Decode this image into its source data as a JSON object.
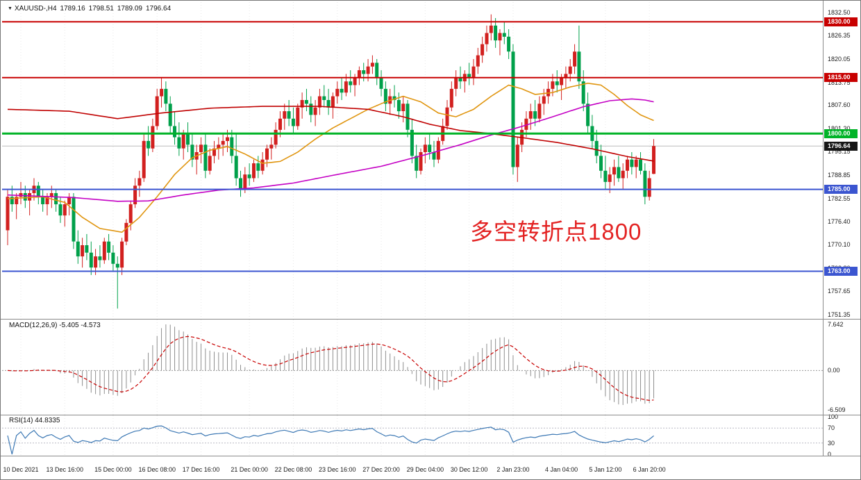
{
  "header": {
    "dropdown_icon": "▼",
    "symbol": "XAUUSD-,H4",
    "open": "1789.16",
    "high": "1798.51",
    "low": "1789.09",
    "close": "1796.64"
  },
  "chart_data": {
    "type": "candlestick",
    "symbol": "XAUUSD",
    "timeframe": "H4",
    "colors": {
      "bull": "#d2201f",
      "bear": "#00a04a",
      "ma_fast": "#e0950f",
      "ma_mid": "#c400c4",
      "ma_slow": "#c00000",
      "current_price_line": "#bcbcbc",
      "current_price_badge": "#151515",
      "macd_hist": "#8e8e8e",
      "macd_signal": "#c80000",
      "rsi": "#3c78b4",
      "grid": "#e8e8e8"
    },
    "price_axis": {
      "max": 1832.5,
      "min": 1751.35,
      "labels": [
        "1832.50",
        "1826.35",
        "1820.05",
        "1813.75",
        "1807.60",
        "1801.30",
        "1795.15",
        "1788.85",
        "1782.55",
        "1776.40",
        "1770.10",
        "1763.80",
        "1757.65",
        "1751.35"
      ]
    },
    "time_axis": {
      "ticks": [
        {
          "i": 3,
          "label": "10 Dec 2021"
        },
        {
          "i": 13,
          "label": "13 Dec 16:00"
        },
        {
          "i": 24,
          "label": "15 Dec 00:00"
        },
        {
          "i": 34,
          "label": "16 Dec 08:00"
        },
        {
          "i": 44,
          "label": "17 Dec 16:00"
        },
        {
          "i": 55,
          "label": "21 Dec 00:00"
        },
        {
          "i": 65,
          "label": "22 Dec 08:00"
        },
        {
          "i": 75,
          "label": "23 Dec 16:00"
        },
        {
          "i": 85,
          "label": "27 Dec 20:00"
        },
        {
          "i": 95,
          "label": "29 Dec 04:00"
        },
        {
          "i": 105,
          "label": "30 Dec 12:00"
        },
        {
          "i": 115,
          "label": "2 Jan 23:00"
        },
        {
          "i": 126,
          "label": "4 Jan 04:00"
        },
        {
          "i": 136,
          "label": "5 Jan 12:00"
        },
        {
          "i": 146,
          "label": "6 Jan 20:00"
        }
      ]
    },
    "levels": [
      {
        "price": 1830.0,
        "label": "1830.00",
        "color": "#c80000",
        "thickness": 2
      },
      {
        "price": 1815.0,
        "label": "1815.00",
        "color": "#c80000",
        "thickness": 2
      },
      {
        "price": 1800.0,
        "label": "1800.00",
        "color": "#00b327",
        "thickness": 3
      },
      {
        "price": 1785.0,
        "label": "1785.00",
        "color": "#3b55d0",
        "thickness": 2
      },
      {
        "price": 1763.0,
        "label": "1763.00",
        "color": "#3b55d0",
        "thickness": 2
      }
    ],
    "current_price": {
      "value": 1796.64,
      "label": "1796.64"
    },
    "candles": [
      [
        1774,
        1785,
        1770,
        1783
      ],
      [
        1783,
        1786,
        1779,
        1781
      ],
      [
        1781,
        1784,
        1777,
        1783
      ],
      [
        1783,
        1787,
        1781,
        1784
      ],
      [
        1784,
        1786,
        1780,
        1782
      ],
      [
        1782,
        1785,
        1778,
        1784
      ],
      [
        1784,
        1788,
        1782,
        1786
      ],
      [
        1786,
        1787,
        1781,
        1783
      ],
      [
        1783,
        1785,
        1779,
        1781
      ],
      [
        1781,
        1784,
        1778,
        1783
      ],
      [
        1783,
        1786,
        1780,
        1784
      ],
      [
        1784,
        1785,
        1779,
        1781
      ],
      [
        1781,
        1783,
        1776,
        1778
      ],
      [
        1778,
        1782,
        1775,
        1781
      ],
      [
        1781,
        1784,
        1778,
        1783
      ],
      [
        1783,
        1784,
        1769,
        1771
      ],
      [
        1771,
        1774,
        1765,
        1767
      ],
      [
        1767,
        1772,
        1764,
        1770
      ],
      [
        1770,
        1773,
        1766,
        1768
      ],
      [
        1768,
        1771,
        1762,
        1764
      ],
      [
        1764,
        1769,
        1762,
        1767
      ],
      [
        1767,
        1770,
        1764,
        1766
      ],
      [
        1766,
        1772,
        1765,
        1771
      ],
      [
        1771,
        1773,
        1766,
        1768
      ],
      [
        1768,
        1770,
        1763,
        1765
      ],
      [
        1765,
        1767,
        1753,
        1764
      ],
      [
        1764,
        1772,
        1762,
        1771
      ],
      [
        1771,
        1777,
        1770,
        1776
      ],
      [
        1776,
        1782,
        1774,
        1781
      ],
      [
        1781,
        1788,
        1780,
        1786
      ],
      [
        1786,
        1790,
        1783,
        1788
      ],
      [
        1788,
        1800,
        1787,
        1798
      ],
      [
        1798,
        1802,
        1794,
        1796
      ],
      [
        1796,
        1804,
        1795,
        1802
      ],
      [
        1802,
        1812,
        1801,
        1810
      ],
      [
        1810,
        1815,
        1807,
        1812
      ],
      [
        1812,
        1814,
        1806,
        1808
      ],
      [
        1808,
        1810,
        1800,
        1802
      ],
      [
        1802,
        1806,
        1797,
        1799
      ],
      [
        1799,
        1803,
        1794,
        1796
      ],
      [
        1796,
        1801,
        1793,
        1800
      ],
      [
        1800,
        1803,
        1795,
        1797
      ],
      [
        1797,
        1800,
        1791,
        1793
      ],
      [
        1793,
        1797,
        1789,
        1795
      ],
      [
        1795,
        1799,
        1792,
        1797
      ],
      [
        1797,
        1800,
        1788,
        1790
      ],
      [
        1790,
        1796,
        1789,
        1794
      ],
      [
        1794,
        1798,
        1792,
        1796
      ],
      [
        1796,
        1799,
        1793,
        1797
      ],
      [
        1797,
        1800,
        1794,
        1798
      ],
      [
        1798,
        1801,
        1795,
        1799
      ],
      [
        1799,
        1801,
        1792,
        1794
      ],
      [
        1794,
        1800,
        1786,
        1788
      ],
      [
        1788,
        1790,
        1783,
        1785
      ],
      [
        1785,
        1791,
        1784,
        1789
      ],
      [
        1789,
        1792,
        1786,
        1788
      ],
      [
        1788,
        1793,
        1787,
        1792
      ],
      [
        1792,
        1794,
        1788,
        1790
      ],
      [
        1790,
        1795,
        1789,
        1793
      ],
      [
        1793,
        1797,
        1791,
        1796
      ],
      [
        1796,
        1799,
        1793,
        1797
      ],
      [
        1797,
        1803,
        1796,
        1801
      ],
      [
        1801,
        1806,
        1799,
        1804
      ],
      [
        1804,
        1808,
        1801,
        1806
      ],
      [
        1806,
        1809,
        1802,
        1804
      ],
      [
        1804,
        1807,
        1800,
        1802
      ],
      [
        1802,
        1808,
        1801,
        1807
      ],
      [
        1807,
        1811,
        1804,
        1809
      ],
      [
        1809,
        1812,
        1806,
        1808
      ],
      [
        1808,
        1810,
        1803,
        1805
      ],
      [
        1805,
        1809,
        1802,
        1807
      ],
      [
        1807,
        1812,
        1805,
        1810
      ],
      [
        1810,
        1813,
        1807,
        1809
      ],
      [
        1809,
        1812,
        1805,
        1807
      ],
      [
        1807,
        1811,
        1804,
        1810
      ],
      [
        1810,
        1814,
        1808,
        1812
      ],
      [
        1812,
        1815,
        1809,
        1811
      ],
      [
        1811,
        1816,
        1810,
        1814
      ],
      [
        1814,
        1817,
        1811,
        1813
      ],
      [
        1813,
        1816,
        1810,
        1815
      ],
      [
        1815,
        1818,
        1813,
        1817
      ],
      [
        1817,
        1819,
        1814,
        1816
      ],
      [
        1816,
        1820,
        1814,
        1818
      ],
      [
        1818,
        1821,
        1816,
        1819
      ],
      [
        1819,
        1820,
        1813,
        1815
      ],
      [
        1815,
        1817,
        1810,
        1812
      ],
      [
        1812,
        1814,
        1806,
        1808
      ],
      [
        1808,
        1812,
        1805,
        1810
      ],
      [
        1810,
        1813,
        1807,
        1809
      ],
      [
        1809,
        1811,
        1804,
        1806
      ],
      [
        1806,
        1810,
        1803,
        1808
      ],
      [
        1808,
        1809,
        1799,
        1801
      ],
      [
        1801,
        1804,
        1792,
        1794
      ],
      [
        1794,
        1797,
        1788,
        1790
      ],
      [
        1790,
        1796,
        1789,
        1795
      ],
      [
        1795,
        1799,
        1792,
        1797
      ],
      [
        1797,
        1800,
        1793,
        1795
      ],
      [
        1795,
        1798,
        1791,
        1793
      ],
      [
        1793,
        1799,
        1792,
        1798
      ],
      [
        1798,
        1804,
        1797,
        1802
      ],
      [
        1802,
        1809,
        1801,
        1807
      ],
      [
        1807,
        1814,
        1806,
        1812
      ],
      [
        1812,
        1817,
        1810,
        1815
      ],
      [
        1815,
        1818,
        1812,
        1814
      ],
      [
        1814,
        1817,
        1811,
        1816
      ],
      [
        1816,
        1819,
        1813,
        1815
      ],
      [
        1815,
        1820,
        1813,
        1818
      ],
      [
        1818,
        1823,
        1816,
        1821
      ],
      [
        1821,
        1826,
        1819,
        1824
      ],
      [
        1824,
        1829,
        1822,
        1827
      ],
      [
        1827,
        1832,
        1825,
        1829
      ],
      [
        1829,
        1831,
        1823,
        1825
      ],
      [
        1825,
        1828,
        1821,
        1827
      ],
      [
        1827,
        1830,
        1824,
        1826
      ],
      [
        1826,
        1828,
        1820,
        1822
      ],
      [
        1822,
        1824,
        1789,
        1791
      ],
      [
        1791,
        1799,
        1787,
        1797
      ],
      [
        1797,
        1803,
        1795,
        1801
      ],
      [
        1801,
        1806,
        1799,
        1804
      ],
      [
        1804,
        1808,
        1801,
        1806
      ],
      [
        1806,
        1809,
        1802,
        1804
      ],
      [
        1804,
        1810,
        1803,
        1808
      ],
      [
        1808,
        1812,
        1805,
        1810
      ],
      [
        1810,
        1814,
        1808,
        1812
      ],
      [
        1812,
        1816,
        1810,
        1814
      ],
      [
        1814,
        1817,
        1811,
        1813
      ],
      [
        1813,
        1816,
        1809,
        1815
      ],
      [
        1815,
        1818,
        1812,
        1816
      ],
      [
        1816,
        1820,
        1814,
        1818
      ],
      [
        1818,
        1824,
        1816,
        1822
      ],
      [
        1822,
        1829,
        1812,
        1814
      ],
      [
        1814,
        1817,
        1806,
        1808
      ],
      [
        1808,
        1811,
        1800,
        1802
      ],
      [
        1802,
        1805,
        1796,
        1798
      ],
      [
        1798,
        1801,
        1792,
        1794
      ],
      [
        1794,
        1797,
        1788,
        1790
      ],
      [
        1790,
        1794,
        1785,
        1787
      ],
      [
        1787,
        1791,
        1784,
        1789
      ],
      [
        1789,
        1793,
        1786,
        1791
      ],
      [
        1791,
        1794,
        1787,
        1788
      ],
      [
        1788,
        1792,
        1785,
        1790
      ],
      [
        1790,
        1794,
        1788,
        1793
      ],
      [
        1793,
        1795,
        1789,
        1791
      ],
      [
        1791,
        1794,
        1788,
        1793
      ],
      [
        1793,
        1795,
        1789,
        1790
      ],
      [
        1790,
        1792,
        1781,
        1783
      ],
      [
        1783,
        1790,
        1782,
        1788
      ],
      [
        1789.16,
        1798.51,
        1789.09,
        1796.64
      ]
    ],
    "moving_averages": [
      {
        "name": "ma-fast-orange-line",
        "color": "#e0950f",
        "points": [
          [
            0,
            1782.5
          ],
          [
            8,
            1783
          ],
          [
            13,
            1781.5
          ],
          [
            17,
            1777.5
          ],
          [
            21,
            1774.5
          ],
          [
            26,
            1773.5
          ],
          [
            30,
            1777.5
          ],
          [
            34,
            1783
          ],
          [
            38,
            1789
          ],
          [
            42,
            1793.5
          ],
          [
            46,
            1795.5
          ],
          [
            50,
            1796.5
          ],
          [
            54,
            1794.5
          ],
          [
            58,
            1792
          ],
          [
            62,
            1792.5
          ],
          [
            66,
            1795
          ],
          [
            70,
            1798.5
          ],
          [
            74,
            1801.5
          ],
          [
            78,
            1804
          ],
          [
            82,
            1806.5
          ],
          [
            86,
            1808.5
          ],
          [
            90,
            1810
          ],
          [
            94,
            1808.5
          ],
          [
            98,
            1805.5
          ],
          [
            102,
            1804.5
          ],
          [
            106,
            1806.5
          ],
          [
            110,
            1810
          ],
          [
            114,
            1813
          ],
          [
            117,
            1812
          ],
          [
            120,
            1810.5
          ],
          [
            124,
            1811
          ],
          [
            128,
            1812.5
          ],
          [
            132,
            1813.5
          ],
          [
            135,
            1813
          ],
          [
            138,
            1810.5
          ],
          [
            141,
            1807.5
          ],
          [
            144,
            1805
          ],
          [
            147,
            1803.5
          ]
        ]
      },
      {
        "name": "ma-mid-magenta-line",
        "color": "#c400c4",
        "points": [
          [
            0,
            1783.5
          ],
          [
            15,
            1782.8
          ],
          [
            25,
            1781.8
          ],
          [
            32,
            1781.9
          ],
          [
            40,
            1783.5
          ],
          [
            48,
            1784.8
          ],
          [
            56,
            1785.4
          ],
          [
            65,
            1786.7
          ],
          [
            75,
            1789
          ],
          [
            85,
            1791.2
          ],
          [
            95,
            1794.3
          ],
          [
            103,
            1797
          ],
          [
            110,
            1799.6
          ],
          [
            117,
            1801.9
          ],
          [
            124,
            1804.5
          ],
          [
            131,
            1807.2
          ],
          [
            137,
            1808.8
          ],
          [
            142,
            1809.3
          ],
          [
            145,
            1809
          ],
          [
            147,
            1808.5
          ]
        ]
      },
      {
        "name": "ma-slow-red-line",
        "color": "#c00000",
        "points": [
          [
            0,
            1806.5
          ],
          [
            14,
            1806
          ],
          [
            25,
            1804
          ],
          [
            35,
            1805.5
          ],
          [
            46,
            1806.8
          ],
          [
            58,
            1807.3
          ],
          [
            71,
            1807.3
          ],
          [
            82,
            1806.5
          ],
          [
            90,
            1804.5
          ],
          [
            96,
            1802.5
          ],
          [
            103,
            1800.8
          ],
          [
            109,
            1800.1
          ],
          [
            117,
            1798.9
          ],
          [
            125,
            1797.6
          ],
          [
            133,
            1795.9
          ],
          [
            141,
            1793.8
          ],
          [
            147,
            1792.6
          ]
        ]
      }
    ],
    "indicators": {
      "macd": {
        "label": "MACD(12,26,9)",
        "values_label": "-5.405 -4.573",
        "fast": 12,
        "slow": 26,
        "signal": 9,
        "scale": {
          "max": 7.642,
          "min": -6.509,
          "labels": [
            "7.642",
            "0.00",
            "-6.509"
          ]
        }
      },
      "rsi": {
        "label": "RSI(14)",
        "value_label": "44.8335",
        "period": 14,
        "levels": [
          70,
          30
        ],
        "scale_labels": [
          "100",
          "70",
          "30",
          "0"
        ],
        "scale_values": [
          100,
          70,
          30,
          0
        ]
      }
    },
    "annotation": {
      "text": "多空转折点1800",
      "color": "#e32222"
    }
  }
}
